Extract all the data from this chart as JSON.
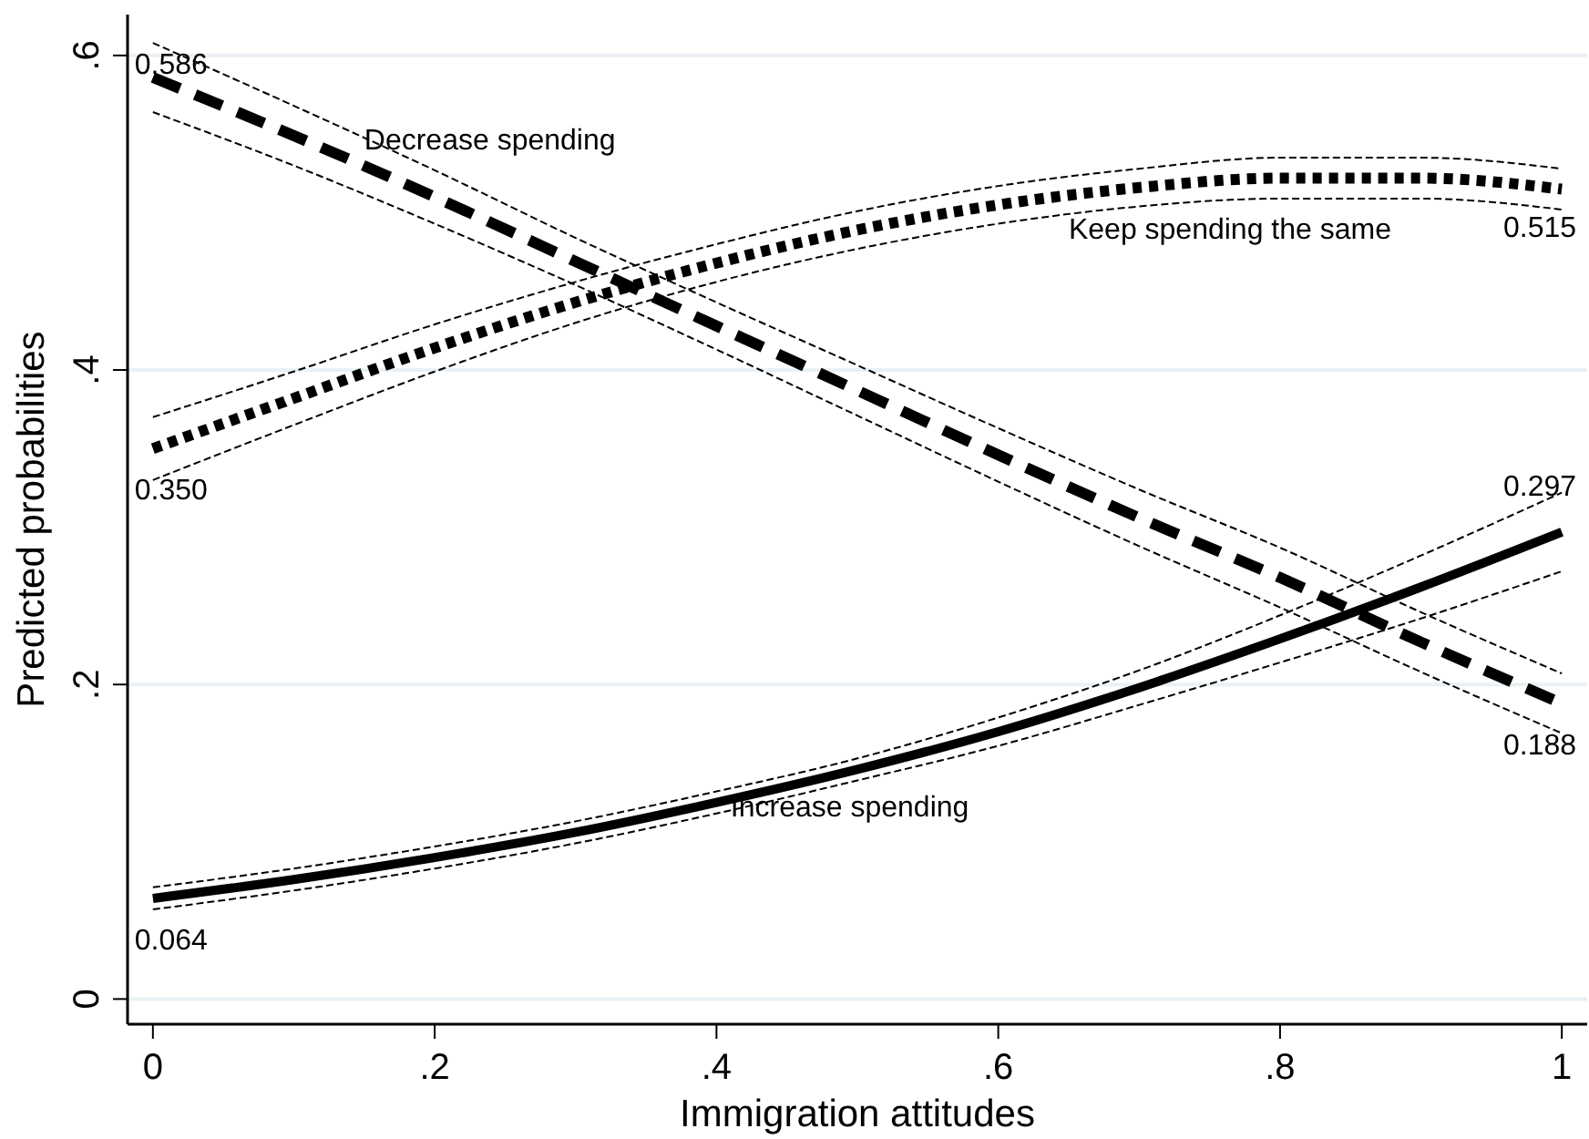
{
  "chart_data": {
    "type": "line",
    "xlabel": "Immigration attitudes",
    "ylabel": "Predicted probabilities",
    "x": [
      0,
      0.1,
      0.2,
      0.3,
      0.4,
      0.5,
      0.6,
      0.7,
      0.8,
      0.9,
      1
    ],
    "xlim": [
      -0.018,
      1.018
    ],
    "ylim": [
      -0.016,
      0.626
    ],
    "xticks": [
      0,
      {
        "value": 0.2,
        "label": ".2"
      },
      {
        "value": 0.4,
        "label": ".4"
      },
      {
        "value": 0.6,
        "label": ".6"
      },
      {
        "value": 0.8,
        "label": ".8"
      },
      1
    ],
    "yticks": [
      0,
      {
        "value": 0.2,
        "label": ".2"
      },
      {
        "value": 0.4,
        "label": ".4"
      },
      {
        "value": 0.6,
        "label": ".6"
      }
    ],
    "grid": "y",
    "marker": "none",
    "series": [
      {
        "name": "Decrease spending",
        "color": "#000000",
        "line_style": "dashed",
        "values": [
          0.586,
          0.549,
          0.51,
          0.469,
          0.428,
          0.387,
          0.346,
          0.306,
          0.268,
          0.227,
          0.188
        ],
        "value_labels": [
          "0.586",
          null,
          null,
          null,
          null,
          null,
          null,
          null,
          null,
          null,
          "0.188"
        ]
      },
      {
        "name": "Keep spending the same",
        "color": "#000000",
        "line_style": "dotted",
        "values": [
          0.35,
          0.382,
          0.414,
          0.443,
          0.468,
          0.489,
          0.505,
          0.516,
          0.522,
          0.522,
          0.515
        ],
        "value_labels": [
          "0.350",
          null,
          null,
          null,
          null,
          null,
          null,
          null,
          null,
          null,
          "0.515"
        ]
      },
      {
        "name": "Increase spending",
        "color": "#000000",
        "line_style": "solid",
        "values": [
          0.064,
          0.076,
          0.09,
          0.106,
          0.125,
          0.146,
          0.17,
          0.198,
          0.229,
          0.262,
          0.297
        ],
        "value_labels": [
          "0.064",
          null,
          null,
          null,
          null,
          null,
          null,
          null,
          null,
          null,
          "0.297"
        ]
      },
      {
        "color": "#000000",
        "line_style": "dashed",
        "values": [
          0.564,
          0.53,
          0.493,
          0.454,
          0.413,
          0.371,
          0.329,
          0.288,
          0.249,
          0.208,
          0.169
        ]
      },
      {
        "color": "#000000",
        "line_style": "dashed",
        "values": [
          0.608,
          0.568,
          0.527,
          0.484,
          0.443,
          0.403,
          0.363,
          0.324,
          0.287,
          0.246,
          0.207
        ]
      },
      {
        "color": "#000000",
        "line_style": "dashed",
        "values": [
          0.33,
          0.365,
          0.399,
          0.43,
          0.456,
          0.477,
          0.493,
          0.504,
          0.509,
          0.509,
          0.502
        ]
      },
      {
        "color": "#000000",
        "line_style": "dashed",
        "values": [
          0.37,
          0.399,
          0.429,
          0.456,
          0.48,
          0.501,
          0.517,
          0.528,
          0.535,
          0.535,
          0.528
        ]
      },
      {
        "color": "#000000",
        "line_style": "dashed",
        "values": [
          0.057,
          0.069,
          0.083,
          0.099,
          0.118,
          0.139,
          0.161,
          0.187,
          0.214,
          0.242,
          0.272
        ]
      },
      {
        "color": "#000000",
        "line_style": "dashed",
        "values": [
          0.071,
          0.083,
          0.097,
          0.113,
          0.132,
          0.153,
          0.179,
          0.209,
          0.244,
          0.282,
          0.322
        ]
      }
    ]
  }
}
